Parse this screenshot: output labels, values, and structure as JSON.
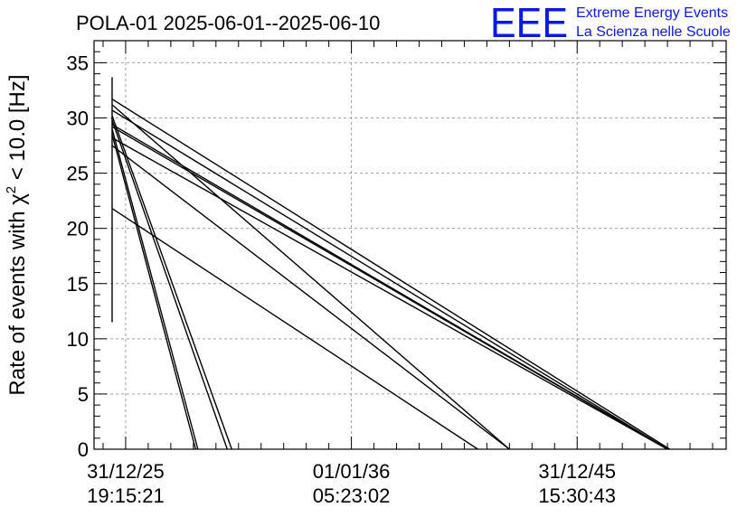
{
  "chart_data": {
    "type": "line",
    "title": "POLA-01 2025-06-01--2025-06-10",
    "ylabel_prefix": "Rate of events with ",
    "ylabel_chi": "χ",
    "ylabel_sup": "2",
    "ylabel_suffix": " < 10.0 [Hz]",
    "ylim": [
      0,
      37
    ],
    "yticks": [
      0,
      5,
      10,
      15,
      20,
      25,
      30,
      35
    ],
    "xlim": [
      -1.4,
      26.6
    ],
    "x_unit": "years from 31/12/25 19:15:21",
    "xtick_labels": [
      {
        "x": 0,
        "date": "31/12/25",
        "time": "19:15:21"
      },
      {
        "x": 10,
        "date": "01/01/36",
        "time": "05:23:02"
      },
      {
        "x": 20,
        "date": "31/12/45",
        "time": "15:30:43"
      }
    ],
    "grid": true,
    "colors": {
      "line": "#000000",
      "grid": "#a0a0a0"
    },
    "vertical_spike": {
      "x": -0.6,
      "y_min": 11.5,
      "y_max": 33.7
    },
    "series": [
      {
        "points": [
          [
            -0.6,
            28.5
          ],
          [
            3.1,
            0
          ]
        ]
      },
      {
        "points": [
          [
            -0.6,
            29.0
          ],
          [
            3.2,
            0
          ]
        ]
      },
      {
        "points": [
          [
            -0.6,
            29.8
          ],
          [
            4.5,
            0
          ]
        ]
      },
      {
        "points": [
          [
            -0.6,
            30.2
          ],
          [
            4.7,
            0
          ]
        ]
      },
      {
        "points": [
          [
            -0.6,
            21.8
          ],
          [
            15.6,
            0
          ]
        ]
      },
      {
        "points": [
          [
            -0.6,
            31.2
          ],
          [
            17.0,
            0
          ]
        ]
      },
      {
        "points": [
          [
            -0.6,
            27.5
          ],
          [
            17.0,
            0
          ]
        ]
      },
      {
        "points": [
          [
            -0.6,
            28.2
          ],
          [
            24.0,
            0
          ]
        ]
      },
      {
        "points": [
          [
            -0.6,
            29.2
          ],
          [
            24.0,
            0
          ]
        ]
      },
      {
        "points": [
          [
            -0.6,
            29.4
          ],
          [
            24.0,
            0
          ]
        ]
      },
      {
        "points": [
          [
            -0.6,
            30.7
          ],
          [
            24.0,
            0
          ]
        ]
      },
      {
        "points": [
          [
            -0.6,
            31.7
          ],
          [
            24.1,
            0
          ]
        ]
      }
    ]
  },
  "logo": {
    "mark": "EEE",
    "line1": "Extreme Energy Events",
    "line2": "La Scienza nelle Scuole"
  }
}
